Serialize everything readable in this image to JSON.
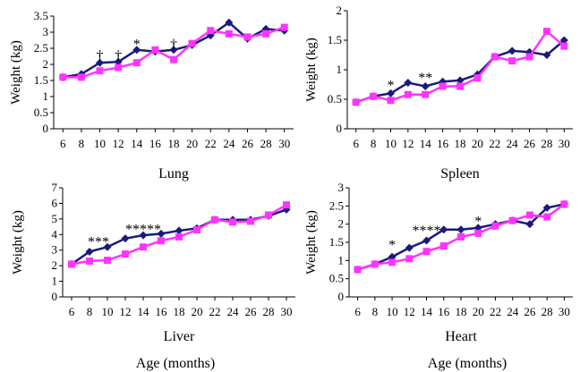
{
  "shared_xlabel": "Age (months)",
  "ylabel": "Weight (kg)",
  "colors": {
    "series_a": "#1a1a7a",
    "series_b": "#ff33ff"
  },
  "chart_data": [
    {
      "type": "line",
      "caption": "Lung",
      "ylabel": "Weight (kg)",
      "x": [
        6,
        8,
        10,
        12,
        14,
        16,
        18,
        20,
        22,
        24,
        26,
        28,
        30
      ],
      "x_tick_labels": [
        "6",
        "8",
        "10",
        "12",
        "14",
        "16",
        "18",
        "20",
        "22",
        "24",
        "26",
        "28",
        "30"
      ],
      "ylim": [
        0,
        3.5
      ],
      "y_ticks": [
        0,
        0.5,
        1,
        1.5,
        2,
        2.5,
        3,
        3.5
      ],
      "y_tick_labels": [
        "0",
        "0.5",
        "1",
        "1.5",
        "2",
        "2.5",
        "3",
        "3.5"
      ],
      "series": [
        {
          "marker": "diamond",
          "color": "#1a1a7a",
          "values": [
            1.6,
            1.7,
            2.05,
            2.08,
            2.45,
            2.4,
            2.45,
            2.6,
            2.9,
            3.3,
            2.8,
            3.1,
            3.05
          ]
        },
        {
          "marker": "square",
          "color": "#ff33ff",
          "values": [
            1.6,
            1.6,
            1.8,
            1.9,
            2.05,
            2.45,
            2.15,
            2.65,
            3.05,
            2.95,
            2.85,
            2.95,
            3.15
          ]
        }
      ],
      "annotations": [
        {
          "x": 10,
          "y": 2.3,
          "text": "†"
        },
        {
          "x": 12,
          "y": 2.3,
          "text": "†"
        },
        {
          "x": 14,
          "y": 2.65,
          "text": "*"
        },
        {
          "x": 18,
          "y": 2.65,
          "text": "†"
        }
      ]
    },
    {
      "type": "line",
      "caption": "Spleen",
      "ylabel": "Weight (kg)",
      "x": [
        6,
        8,
        10,
        12,
        14,
        16,
        18,
        20,
        22,
        24,
        26,
        28,
        30
      ],
      "x_tick_labels": [
        "6",
        "8",
        "10",
        "12",
        "14",
        "16",
        "18",
        "20",
        "22",
        "24",
        "26",
        "28",
        "30"
      ],
      "ylim": [
        0,
        2
      ],
      "y_ticks": [
        0,
        0.5,
        1,
        1.5,
        2
      ],
      "y_tick_labels": [
        "0",
        "0.5",
        "1",
        "1.5",
        "2"
      ],
      "series": [
        {
          "marker": "diamond",
          "color": "#1a1a7a",
          "values": [
            0.45,
            0.55,
            0.6,
            0.78,
            0.72,
            0.8,
            0.82,
            0.92,
            1.22,
            1.32,
            1.3,
            1.25,
            1.5
          ]
        },
        {
          "marker": "square",
          "color": "#ff33ff",
          "values": [
            0.45,
            0.55,
            0.48,
            0.58,
            0.58,
            0.72,
            0.72,
            0.86,
            1.22,
            1.15,
            1.22,
            1.65,
            1.4
          ]
        }
      ],
      "annotations": [
        {
          "x": 10,
          "y": 0.75,
          "text": "*"
        },
        {
          "x": 14,
          "y": 0.88,
          "text": "**"
        }
      ]
    },
    {
      "type": "line",
      "caption": "Liver",
      "ylabel": "Weight (kg)",
      "x": [
        6,
        8,
        10,
        12,
        14,
        16,
        18,
        20,
        22,
        24,
        26,
        28,
        30
      ],
      "x_tick_labels": [
        "6",
        "8",
        "10",
        "12",
        "14",
        "16",
        "18",
        "20",
        "22",
        "24",
        "26",
        "28",
        "30"
      ],
      "ylim": [
        0,
        7
      ],
      "y_ticks": [
        0,
        1,
        2,
        3,
        4,
        5,
        6,
        7
      ],
      "y_tick_labels": [
        "0",
        "1",
        "2",
        "3",
        "4",
        "5",
        "6",
        "7"
      ],
      "series": [
        {
          "marker": "diamond",
          "color": "#1a1a7a",
          "values": [
            2.1,
            2.9,
            3.2,
            3.75,
            3.95,
            4.05,
            4.25,
            4.4,
            4.95,
            4.95,
            4.95,
            5.2,
            5.6
          ]
        },
        {
          "marker": "square",
          "color": "#ff33ff",
          "values": [
            2.1,
            2.3,
            2.35,
            2.75,
            3.2,
            3.6,
            3.85,
            4.3,
            4.95,
            4.8,
            4.85,
            5.25,
            5.9
          ]
        }
      ],
      "annotations": [
        {
          "x": 9,
          "y": 3.6,
          "text": "***"
        },
        {
          "x": 14,
          "y": 4.4,
          "text": "*****"
        }
      ]
    },
    {
      "type": "line",
      "caption": "Heart",
      "ylabel": "Weight (kg)",
      "x": [
        6,
        8,
        10,
        12,
        14,
        16,
        18,
        20,
        22,
        24,
        26,
        28,
        30
      ],
      "x_tick_labels": [
        "6",
        "8",
        "10",
        "12",
        "14",
        "16",
        "18",
        "20",
        "22",
        "24",
        "26",
        "28",
        "30"
      ],
      "ylim": [
        0,
        3
      ],
      "y_ticks": [
        0,
        0.5,
        1,
        1.5,
        2,
        2.5,
        3
      ],
      "y_tick_labels": [
        "0",
        "0.5",
        "1",
        "1.5",
        "2",
        "2.5",
        "3"
      ],
      "series": [
        {
          "marker": "diamond",
          "color": "#1a1a7a",
          "values": [
            0.75,
            0.9,
            1.1,
            1.35,
            1.55,
            1.85,
            1.85,
            1.9,
            2.0,
            2.1,
            2.0,
            2.45,
            2.55
          ]
        },
        {
          "marker": "square",
          "color": "#ff33ff",
          "values": [
            0.75,
            0.9,
            0.95,
            1.05,
            1.25,
            1.4,
            1.65,
            1.75,
            1.95,
            2.1,
            2.25,
            2.2,
            2.55
          ]
        }
      ],
      "annotations": [
        {
          "x": 10,
          "y": 1.45,
          "text": "*"
        },
        {
          "x": 14,
          "y": 1.85,
          "text": "****"
        },
        {
          "x": 20,
          "y": 2.1,
          "text": "*"
        }
      ]
    }
  ]
}
